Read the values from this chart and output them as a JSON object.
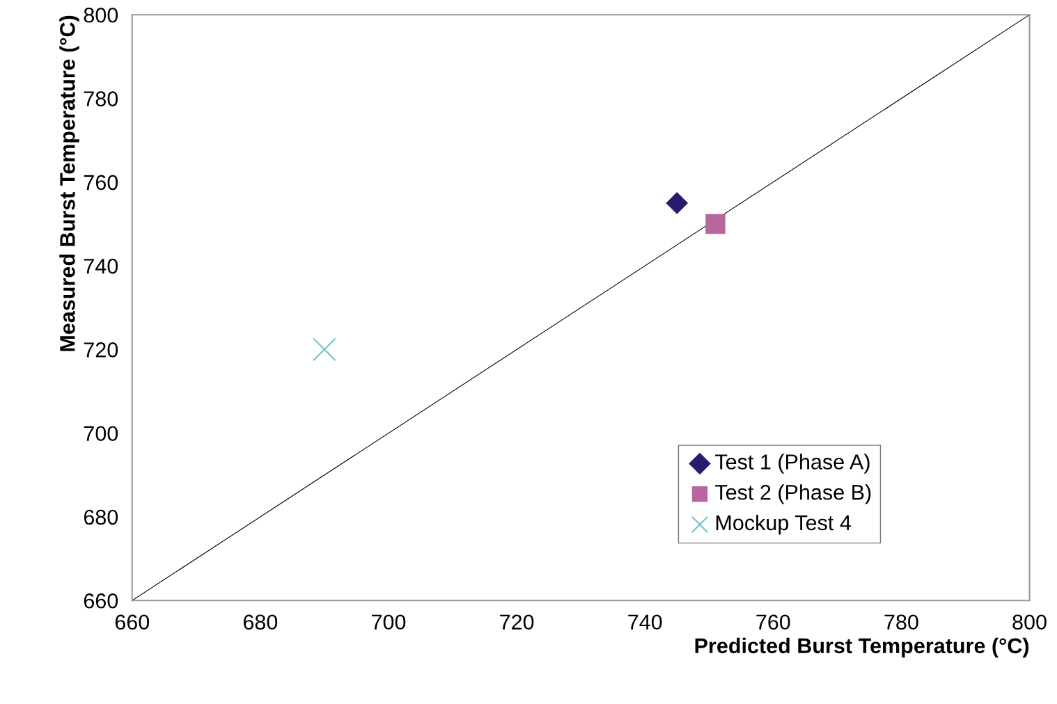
{
  "chart_data": {
    "type": "scatter",
    "xlabel": "Predicted Burst Temperature (°C)",
    "ylabel": "Measured Burst Temperature (°C)",
    "xlim": [
      660,
      800
    ],
    "xticks": [
      660,
      680,
      700,
      720,
      740,
      760,
      780,
      800
    ],
    "ylim": [
      660,
      800
    ],
    "yticks": [
      660,
      680,
      700,
      720,
      740,
      760,
      780,
      800
    ],
    "grid": false,
    "legend": "bottom right",
    "series": [
      {
        "name": "Test 1 (Phase A)",
        "color": "#2a1a6e",
        "marker": "diamond",
        "x": [
          745
        ],
        "values": [
          755
        ]
      },
      {
        "name": "Test 2 (Phase B)",
        "color": "#b8669e",
        "marker": "square",
        "x": [
          751
        ],
        "values": [
          750
        ]
      },
      {
        "name": "Mockup Test 4",
        "color": "#70c4c4",
        "marker": "cross",
        "x": [
          690
        ],
        "values": [
          720
        ]
      },
      {
        "type": "line",
        "color": "#000000",
        "marker": "none",
        "line_style": "solid",
        "x": [
          660,
          800
        ],
        "values": [
          660,
          800
        ]
      }
    ]
  }
}
